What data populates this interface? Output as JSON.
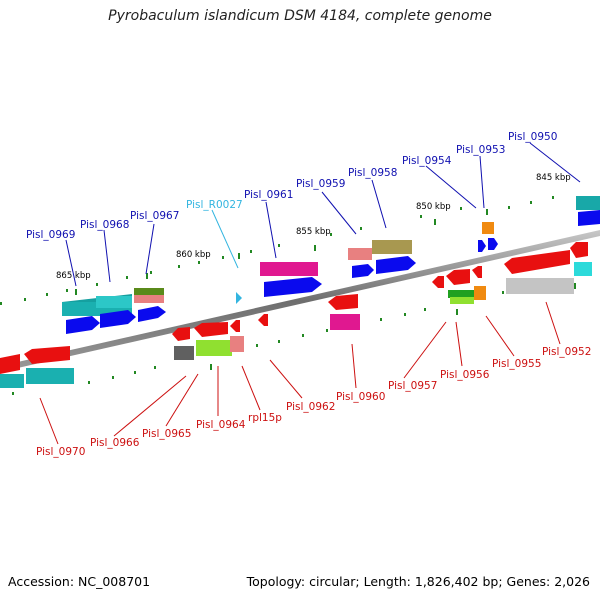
{
  "title": "Pyrobaculum islandicum DSM 4184, complete genome",
  "footer": {
    "accession": "Accession: NC_008701",
    "topology": "Topology: circular; Length: 1,826,402 bp; Genes: 2,026"
  },
  "colors": {
    "label_plus": "#1010b0",
    "label_minus": "#cc1010",
    "label_rna": "#33b5e0"
  },
  "scale_labels": [
    "865 kbp",
    "860 kbp",
    "855 kbp",
    "850 kbp",
    "845 kbp"
  ],
  "genes_top": [
    "Pisl_0969",
    "Pisl_0968",
    "Pisl_0967",
    "Pisl_R0027",
    "Pisl_0961",
    "Pisl_0959",
    "Pisl_0958",
    "Pisl_0954",
    "Pisl_0953",
    "Pisl_0950"
  ],
  "genes_bottom": [
    "Pisl_0970",
    "Pisl_0966",
    "Pisl_0965",
    "Pisl_0964",
    "rpl15p",
    "Pisl_0962",
    "Pisl_0960",
    "Pisl_0957",
    "Pisl_0956",
    "Pisl_0955",
    "Pisl_0952"
  ]
}
